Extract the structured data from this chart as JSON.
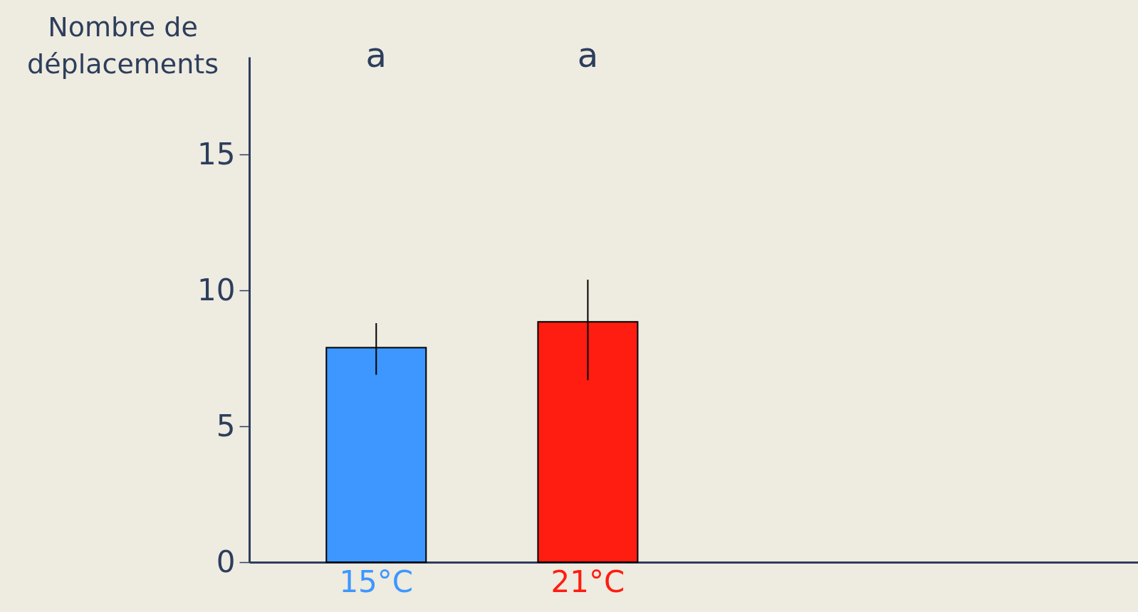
{
  "chart_data": {
    "type": "bar",
    "ylabel": "Nombre de déplacements",
    "categories": [
      "15°C",
      "21°C",
      null,
      null
    ],
    "values": [
      7.9,
      8.85,
      null,
      null
    ],
    "colors": [
      "#3d97ff",
      "#ff1c10",
      null,
      null
    ],
    "errors": [
      [
        6.9,
        8.8
      ],
      [
        6.7,
        10.4
      ],
      null,
      null
    ],
    "ylim": [
      0,
      18.6
    ],
    "yticks": [
      0,
      5,
      10,
      15
    ],
    "grid": false,
    "annotations": [
      "a",
      "a"
    ]
  }
}
